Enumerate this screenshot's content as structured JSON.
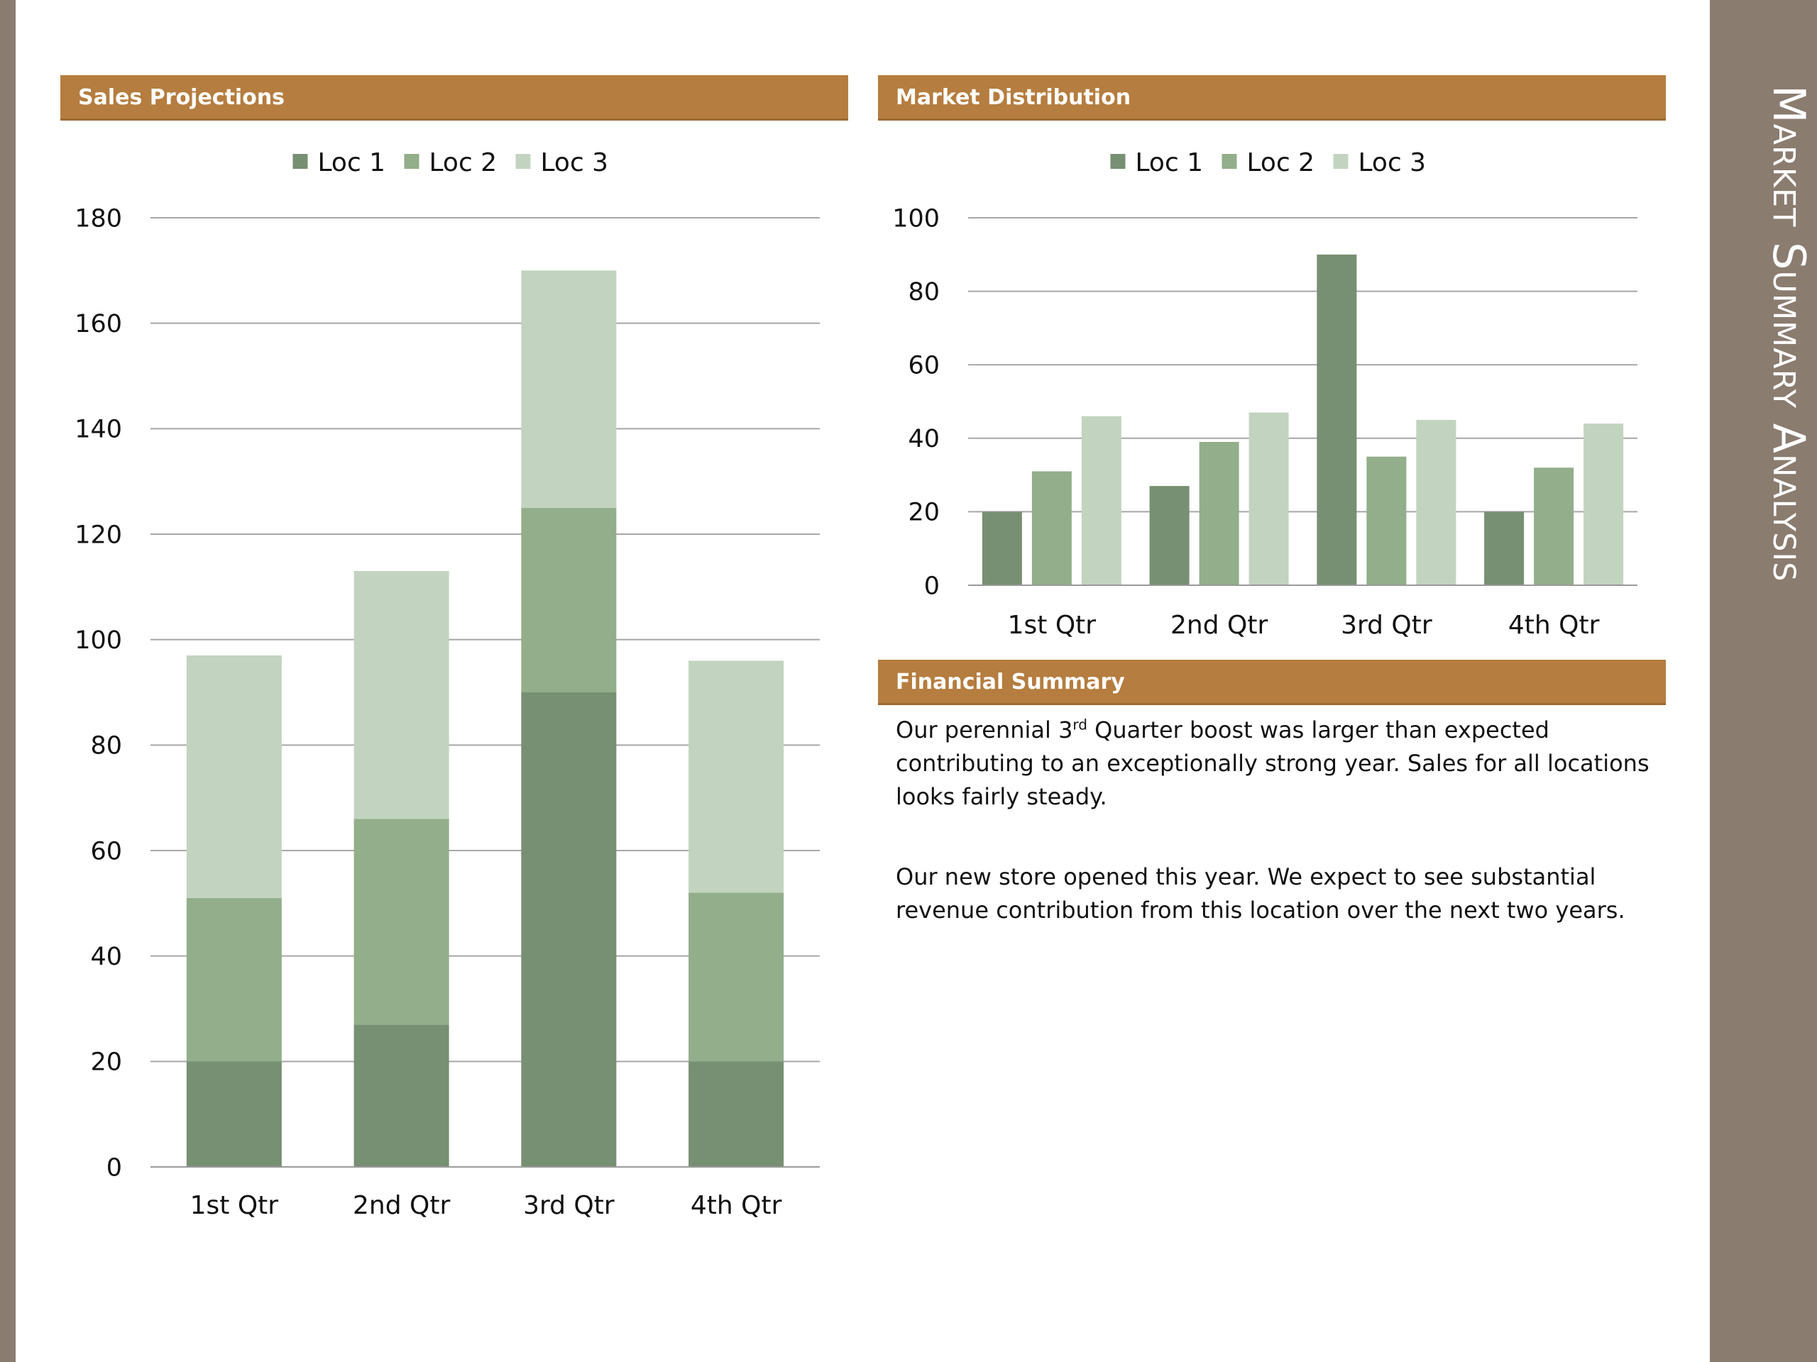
{
  "side_title": "Market Summary Analysis",
  "sections": {
    "sales": "Sales Projections",
    "market": "Market Distribution",
    "financial": "Financial Summary"
  },
  "financial_summary": {
    "p1_before": "Our perennial 3",
    "p1_sup": "rd",
    "p1_after": " Quarter boost was larger than expected contributing to an exceptionally strong year. Sales for all locations looks fairly steady.",
    "p2": "Our new store opened this year. We expect to see substantial revenue contribution from this location over the next two years."
  },
  "colors": {
    "accent": "#b57d3f",
    "band": "#8b7c70",
    "series": [
      "#778f72",
      "#92ae8b",
      "#c2d4bf"
    ]
  },
  "chart_data": [
    {
      "type": "bar",
      "stacked": true,
      "categories": [
        "1st Qtr",
        "2nd Qtr",
        "3rd Qtr",
        "4th Qtr"
      ],
      "series": [
        {
          "name": "Loc 1",
          "values": [
            20,
            27,
            90,
            20
          ]
        },
        {
          "name": "Loc 2",
          "values": [
            31,
            39,
            35,
            32
          ]
        },
        {
          "name": "Loc 3",
          "values": [
            46,
            47,
            45,
            44
          ]
        }
      ],
      "ylim": [
        0,
        180
      ],
      "yticks": [
        0,
        20,
        40,
        60,
        80,
        100,
        120,
        140,
        160,
        180
      ],
      "legend": "top",
      "grid": true
    },
    {
      "type": "bar",
      "stacked": false,
      "categories": [
        "1st Qtr",
        "2nd Qtr",
        "3rd Qtr",
        "4th Qtr"
      ],
      "series": [
        {
          "name": "Loc 1",
          "values": [
            20,
            27,
            90,
            20
          ]
        },
        {
          "name": "Loc 2",
          "values": [
            31,
            39,
            35,
            32
          ]
        },
        {
          "name": "Loc 3",
          "values": [
            46,
            47,
            45,
            44
          ]
        }
      ],
      "ylim": [
        0,
        100
      ],
      "yticks": [
        0,
        20,
        40,
        60,
        80,
        100
      ],
      "legend": "top",
      "grid": true
    }
  ]
}
